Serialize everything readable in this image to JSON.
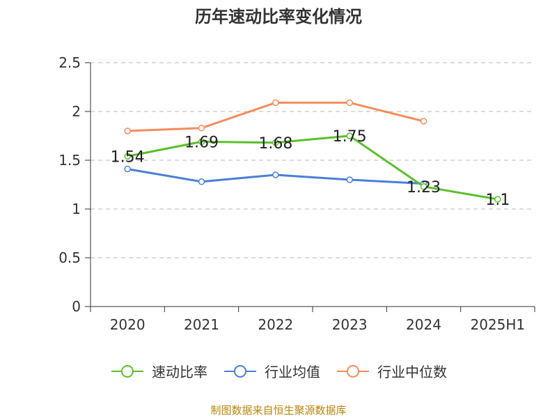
{
  "colors": {
    "series": [
      "#5bc02a",
      "#4a7fd9",
      "#f68c5a"
    ],
    "axis": "#333333",
    "grid": "#c8c8c8",
    "source": "#b8860b"
  },
  "chart_data": {
    "type": "line",
    "title": "历年速动比率变化情况",
    "categories": [
      "2020",
      "2021",
      "2022",
      "2023",
      "2024",
      "2025H1"
    ],
    "y_ticks": [
      "0",
      "0.5",
      "1",
      "1.5",
      "2",
      "2.5"
    ],
    "ylim": [
      0,
      2.5
    ],
    "grid": true,
    "legend_position": "bottom",
    "series": [
      {
        "name": "速动比率",
        "values": [
          1.54,
          1.69,
          1.68,
          1.75,
          1.23,
          1.1
        ],
        "labels": [
          "1.54",
          "1.69",
          "1.68",
          "1.75",
          "1.23",
          "1.1"
        ]
      },
      {
        "name": "行业均值",
        "values": [
          1.41,
          1.28,
          1.35,
          1.3,
          1.26,
          null
        ]
      },
      {
        "name": "行业中位数",
        "values": [
          1.8,
          1.83,
          2.09,
          2.09,
          1.9,
          null
        ]
      }
    ]
  },
  "source_note": "制图数据来自恒生聚源数据库"
}
